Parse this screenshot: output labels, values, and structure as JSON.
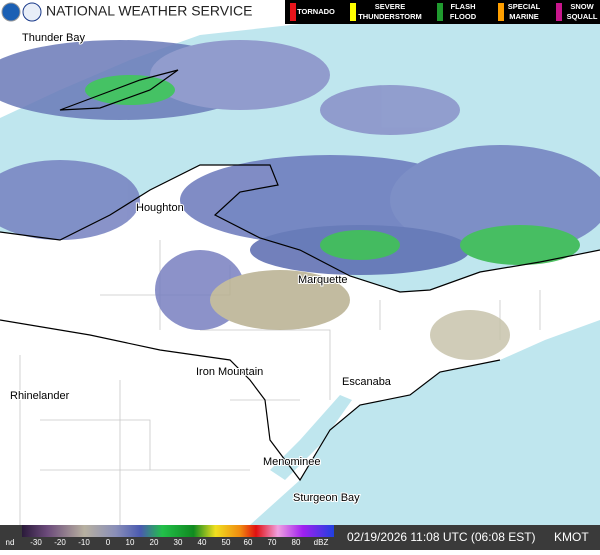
{
  "header": {
    "agency": "NATIONAL WEATHER SERVICE",
    "warnings": [
      {
        "lines": [
          "TORNADO"
        ],
        "color": "#e8141b"
      },
      {
        "lines": [
          "SEVERE",
          "THUNDERSTORM"
        ],
        "color": "#ffff00"
      },
      {
        "lines": [
          "FLASH",
          "FLOOD"
        ],
        "color": "#1f9a2e"
      },
      {
        "lines": [
          "SPECIAL",
          "MARINE"
        ],
        "color": "#ff9f00"
      },
      {
        "lines": [
          "SNOW",
          "SQUALL"
        ],
        "color": "#c8168c"
      }
    ]
  },
  "map": {
    "places": [
      "Thunder Bay",
      "Houghton",
      "Marquette",
      "Iron Mountain",
      "Rhinelander",
      "Escanaba",
      "Menominee",
      "Sturgeon Bay"
    ]
  },
  "footer": {
    "scale": [
      "nd",
      "-30",
      "-20",
      "-10",
      "0",
      "10",
      "20",
      "30",
      "40",
      "50",
      "60",
      "70",
      "80",
      "dBZ"
    ],
    "timestamp": "02/19/2026 11:08 UTC (06:08 EST)",
    "station": "KMOT"
  }
}
